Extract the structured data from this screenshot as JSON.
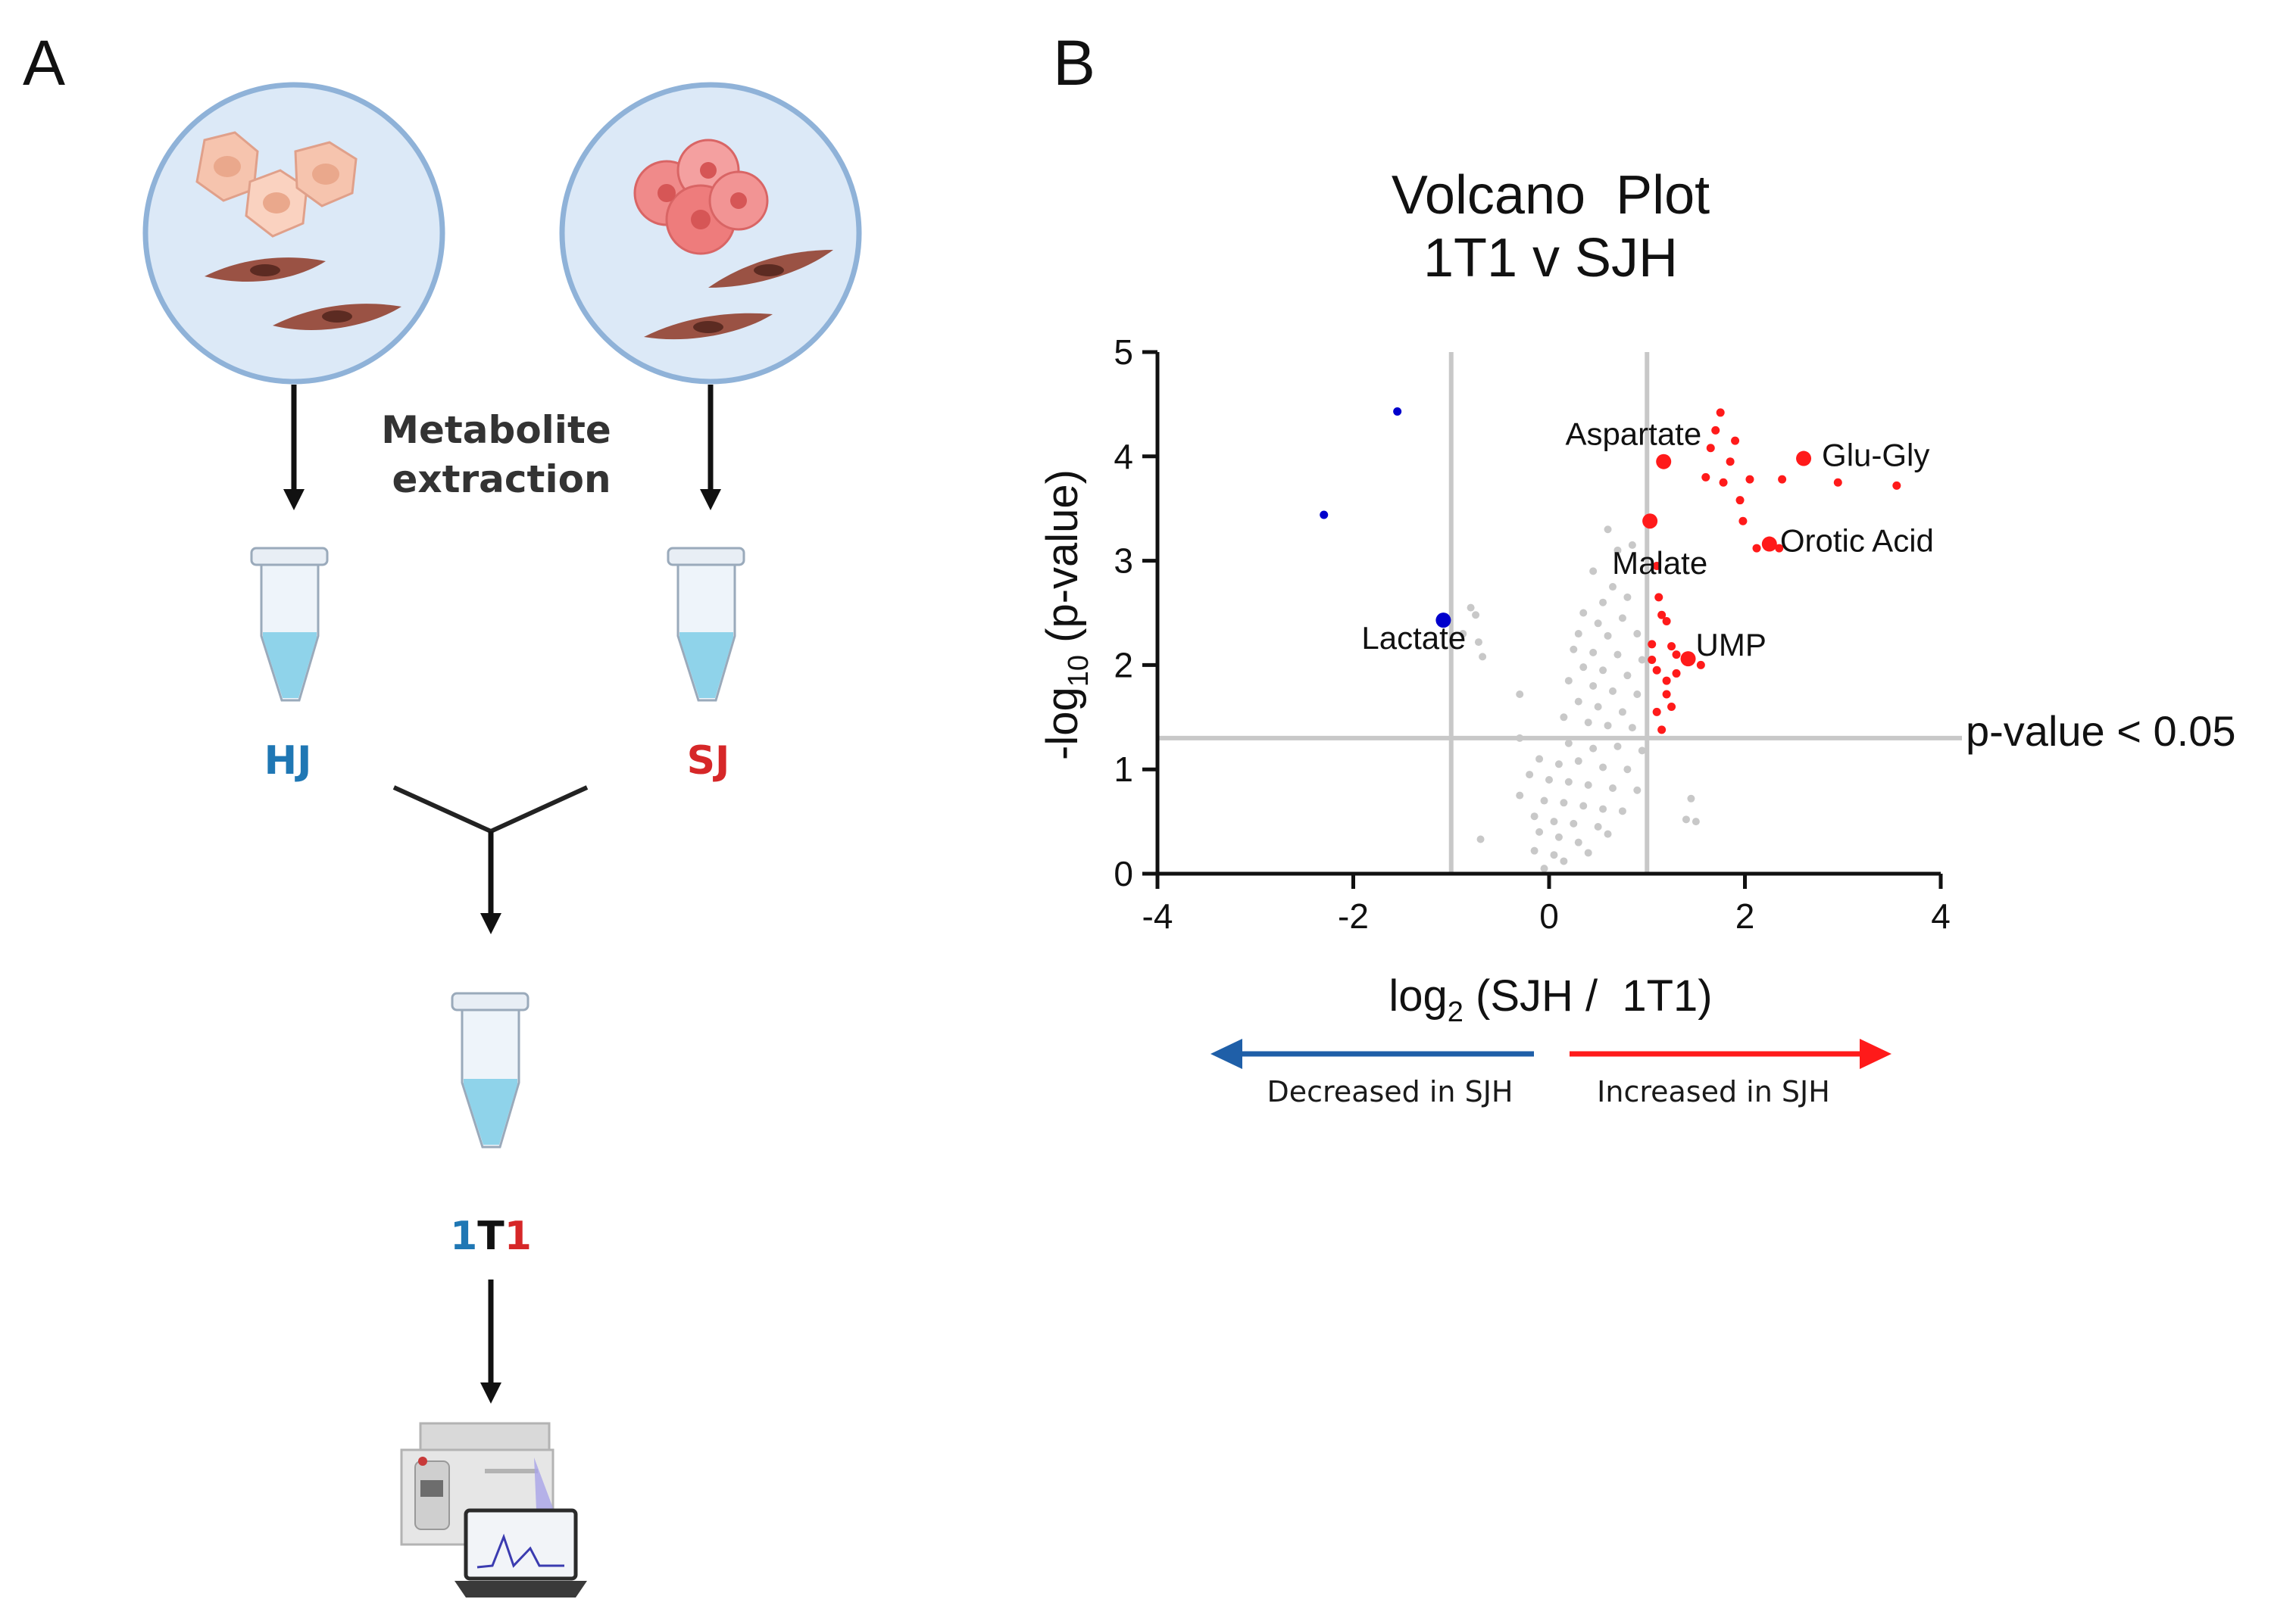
{
  "panel_a": {
    "letter": "A",
    "extraction_line1": "Metabolite",
    "extraction_line2": "extraction",
    "sample_left": "HJ",
    "sample_right": "SJ",
    "mixed_part1": "1",
    "mixed_part2": "T",
    "mixed_part3": "1",
    "colors": {
      "blue": "#1f77b4",
      "red": "#d62728",
      "dish": "#dce9f7",
      "dish_border": "#8fb2d8",
      "tube_liquid": "#8fd3ea"
    }
  },
  "panel_b": {
    "letter": "B",
    "threshold_label": "p-value < 0.05",
    "legend_decreased": "Decreased in SJH",
    "legend_increased": "Increased in SJH"
  },
  "chart_data": {
    "type": "scatter",
    "title": "Volcano  Plot",
    "subtitle": "1T1 v SJH",
    "xlabel_main": "log",
    "xlabel_sub": "2",
    "xlabel_rest": " (SJH /  1T1)",
    "ylabel_main": "-log",
    "ylabel_sub": "10",
    "ylabel_rest": " (p-value)",
    "xlim": [
      -4,
      4
    ],
    "ylim": [
      0,
      5
    ],
    "xticks": [
      "-4",
      "-2",
      "0",
      "2",
      "4"
    ],
    "yticks": [
      "0",
      "1",
      "2",
      "3",
      "4",
      "5"
    ],
    "xtick_values": [
      -4,
      -2,
      0,
      2,
      4
    ],
    "ytick_values": [
      0,
      1,
      2,
      3,
      4,
      5
    ],
    "threshold_y": 1.3,
    "threshold_x": [
      -1,
      1
    ],
    "colors": {
      "up": "#ff1a1a",
      "down": "#0000cc",
      "ns": "#c8c8c8",
      "guide": "#c8c8c8"
    },
    "labeled_points": [
      {
        "name": "Aspartate",
        "x": 1.17,
        "y": 3.95,
        "group": "up"
      },
      {
        "name": "Glu-Gly",
        "x": 2.6,
        "y": 3.98,
        "group": "up"
      },
      {
        "name": "Malate",
        "x": 1.03,
        "y": 3.38,
        "group": "up"
      },
      {
        "name": "Orotic Acid",
        "x": 2.25,
        "y": 3.16,
        "group": "up"
      },
      {
        "name": "UMP",
        "x": 1.42,
        "y": 2.06,
        "group": "up"
      },
      {
        "name": "Lactate",
        "x": -1.08,
        "y": 2.43,
        "group": "down"
      }
    ],
    "points": [
      {
        "x": 1.75,
        "y": 4.42,
        "group": "up"
      },
      {
        "x": 1.7,
        "y": 4.25,
        "group": "up"
      },
      {
        "x": 1.9,
        "y": 4.15,
        "group": "up"
      },
      {
        "x": 1.65,
        "y": 4.08,
        "group": "up"
      },
      {
        "x": 1.85,
        "y": 3.95,
        "group": "up"
      },
      {
        "x": 1.6,
        "y": 3.8,
        "group": "up"
      },
      {
        "x": 1.78,
        "y": 3.75,
        "group": "up"
      },
      {
        "x": 2.05,
        "y": 3.78,
        "group": "up"
      },
      {
        "x": 2.38,
        "y": 3.78,
        "group": "up"
      },
      {
        "x": 2.95,
        "y": 3.75,
        "group": "up"
      },
      {
        "x": 3.55,
        "y": 3.72,
        "group": "up"
      },
      {
        "x": 1.95,
        "y": 3.58,
        "group": "up"
      },
      {
        "x": 1.98,
        "y": 3.38,
        "group": "up"
      },
      {
        "x": 2.12,
        "y": 3.12,
        "group": "up"
      },
      {
        "x": 2.35,
        "y": 3.12,
        "group": "up"
      },
      {
        "x": 1.1,
        "y": 2.95,
        "group": "up"
      },
      {
        "x": 1.12,
        "y": 2.65,
        "group": "up"
      },
      {
        "x": 1.15,
        "y": 2.48,
        "group": "up"
      },
      {
        "x": 1.2,
        "y": 2.42,
        "group": "up"
      },
      {
        "x": 1.05,
        "y": 2.2,
        "group": "up"
      },
      {
        "x": 1.25,
        "y": 2.18,
        "group": "up"
      },
      {
        "x": 1.3,
        "y": 2.1,
        "group": "up"
      },
      {
        "x": 1.05,
        "y": 2.05,
        "group": "up"
      },
      {
        "x": 1.55,
        "y": 2.0,
        "group": "up"
      },
      {
        "x": 1.1,
        "y": 1.95,
        "group": "up"
      },
      {
        "x": 1.2,
        "y": 1.85,
        "group": "up"
      },
      {
        "x": 1.3,
        "y": 1.92,
        "group": "up"
      },
      {
        "x": 1.2,
        "y": 1.72,
        "group": "up"
      },
      {
        "x": 1.1,
        "y": 1.55,
        "group": "up"
      },
      {
        "x": 1.25,
        "y": 1.6,
        "group": "up"
      },
      {
        "x": 1.15,
        "y": 1.38,
        "group": "up"
      },
      {
        "x": -1.55,
        "y": 4.43,
        "group": "down"
      },
      {
        "x": -2.3,
        "y": 3.44,
        "group": "down"
      },
      {
        "x": -0.8,
        "y": 2.55,
        "group": "ns"
      },
      {
        "x": -0.75,
        "y": 2.48,
        "group": "ns"
      },
      {
        "x": -0.72,
        "y": 2.22,
        "group": "ns"
      },
      {
        "x": -0.68,
        "y": 2.08,
        "group": "ns"
      },
      {
        "x": -0.88,
        "y": 2.3,
        "group": "ns"
      },
      {
        "x": -0.3,
        "y": 1.72,
        "group": "ns"
      },
      {
        "x": 0.6,
        "y": 3.3,
        "group": "ns"
      },
      {
        "x": 0.7,
        "y": 3.1,
        "group": "ns"
      },
      {
        "x": 0.85,
        "y": 3.15,
        "group": "ns"
      },
      {
        "x": 0.45,
        "y": 2.9,
        "group": "ns"
      },
      {
        "x": 0.65,
        "y": 2.75,
        "group": "ns"
      },
      {
        "x": 0.55,
        "y": 2.6,
        "group": "ns"
      },
      {
        "x": 0.8,
        "y": 2.65,
        "group": "ns"
      },
      {
        "x": 0.35,
        "y": 2.5,
        "group": "ns"
      },
      {
        "x": 0.5,
        "y": 2.4,
        "group": "ns"
      },
      {
        "x": 0.75,
        "y": 2.45,
        "group": "ns"
      },
      {
        "x": 0.3,
        "y": 2.3,
        "group": "ns"
      },
      {
        "x": 0.6,
        "y": 2.28,
        "group": "ns"
      },
      {
        "x": 0.9,
        "y": 2.3,
        "group": "ns"
      },
      {
        "x": 0.25,
        "y": 2.15,
        "group": "ns"
      },
      {
        "x": 0.45,
        "y": 2.12,
        "group": "ns"
      },
      {
        "x": 0.7,
        "y": 2.1,
        "group": "ns"
      },
      {
        "x": 0.95,
        "y": 2.05,
        "group": "ns"
      },
      {
        "x": 0.35,
        "y": 1.98,
        "group": "ns"
      },
      {
        "x": 0.55,
        "y": 1.95,
        "group": "ns"
      },
      {
        "x": 0.8,
        "y": 1.9,
        "group": "ns"
      },
      {
        "x": 0.2,
        "y": 1.85,
        "group": "ns"
      },
      {
        "x": 0.45,
        "y": 1.8,
        "group": "ns"
      },
      {
        "x": 0.65,
        "y": 1.75,
        "group": "ns"
      },
      {
        "x": 0.9,
        "y": 1.72,
        "group": "ns"
      },
      {
        "x": 0.3,
        "y": 1.65,
        "group": "ns"
      },
      {
        "x": 0.5,
        "y": 1.6,
        "group": "ns"
      },
      {
        "x": 0.75,
        "y": 1.55,
        "group": "ns"
      },
      {
        "x": 0.15,
        "y": 1.5,
        "group": "ns"
      },
      {
        "x": 0.4,
        "y": 1.45,
        "group": "ns"
      },
      {
        "x": 0.6,
        "y": 1.42,
        "group": "ns"
      },
      {
        "x": 0.85,
        "y": 1.4,
        "group": "ns"
      },
      {
        "x": -0.3,
        "y": 1.3,
        "group": "ns"
      },
      {
        "x": 0.2,
        "y": 1.25,
        "group": "ns"
      },
      {
        "x": 0.45,
        "y": 1.2,
        "group": "ns"
      },
      {
        "x": 0.7,
        "y": 1.22,
        "group": "ns"
      },
      {
        "x": 0.95,
        "y": 1.18,
        "group": "ns"
      },
      {
        "x": -0.1,
        "y": 1.1,
        "group": "ns"
      },
      {
        "x": 0.1,
        "y": 1.05,
        "group": "ns"
      },
      {
        "x": 0.3,
        "y": 1.08,
        "group": "ns"
      },
      {
        "x": 0.55,
        "y": 1.02,
        "group": "ns"
      },
      {
        "x": 0.8,
        "y": 1.0,
        "group": "ns"
      },
      {
        "x": -0.2,
        "y": 0.95,
        "group": "ns"
      },
      {
        "x": 0.0,
        "y": 0.9,
        "group": "ns"
      },
      {
        "x": 0.2,
        "y": 0.88,
        "group": "ns"
      },
      {
        "x": 0.4,
        "y": 0.85,
        "group": "ns"
      },
      {
        "x": 0.65,
        "y": 0.82,
        "group": "ns"
      },
      {
        "x": 0.9,
        "y": 0.8,
        "group": "ns"
      },
      {
        "x": 1.45,
        "y": 0.72,
        "group": "ns"
      },
      {
        "x": -0.3,
        "y": 0.75,
        "group": "ns"
      },
      {
        "x": -0.05,
        "y": 0.7,
        "group": "ns"
      },
      {
        "x": 0.15,
        "y": 0.68,
        "group": "ns"
      },
      {
        "x": 0.35,
        "y": 0.65,
        "group": "ns"
      },
      {
        "x": 0.55,
        "y": 0.62,
        "group": "ns"
      },
      {
        "x": 0.75,
        "y": 0.6,
        "group": "ns"
      },
      {
        "x": 1.4,
        "y": 0.52,
        "group": "ns"
      },
      {
        "x": -0.15,
        "y": 0.55,
        "group": "ns"
      },
      {
        "x": 0.05,
        "y": 0.5,
        "group": "ns"
      },
      {
        "x": 0.25,
        "y": 0.48,
        "group": "ns"
      },
      {
        "x": 0.5,
        "y": 0.45,
        "group": "ns"
      },
      {
        "x": 1.5,
        "y": 0.5,
        "group": "ns"
      },
      {
        "x": -0.1,
        "y": 0.4,
        "group": "ns"
      },
      {
        "x": 0.1,
        "y": 0.35,
        "group": "ns"
      },
      {
        "x": 0.3,
        "y": 0.3,
        "group": "ns"
      },
      {
        "x": -0.7,
        "y": 0.33,
        "group": "ns"
      },
      {
        "x": -0.15,
        "y": 0.22,
        "group": "ns"
      },
      {
        "x": 0.05,
        "y": 0.18,
        "group": "ns"
      },
      {
        "x": 0.15,
        "y": 0.12,
        "group": "ns"
      },
      {
        "x": -0.05,
        "y": 0.05,
        "group": "ns"
      },
      {
        "x": 0.4,
        "y": 0.2,
        "group": "ns"
      },
      {
        "x": 0.6,
        "y": 0.38,
        "group": "ns"
      }
    ]
  }
}
